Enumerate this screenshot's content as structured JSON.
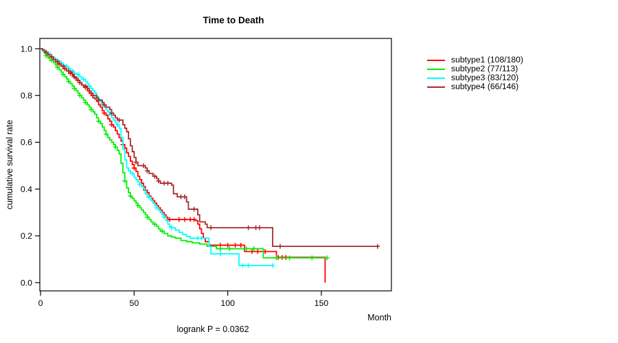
{
  "chart_data": {
    "type": "line",
    "variant": "kaplan-meier-step",
    "title": "Time to Death",
    "xlabel": "Month",
    "ylabel": "cumulative survival rate",
    "annotation": "logrank P = 0.0362",
    "xlim": [
      0,
      187
    ],
    "ylim": [
      0.0,
      1.0
    ],
    "x_ticks": [
      "0",
      "50",
      "100",
      "150"
    ],
    "x_tick_values": [
      0,
      50,
      100,
      150
    ],
    "y_ticks": [
      "0.0",
      "0.2",
      "0.4",
      "0.6",
      "0.8",
      "1.0"
    ],
    "y_tick_values": [
      0.0,
      0.2,
      0.4,
      0.6,
      0.8,
      1.0
    ],
    "grid": false,
    "legend_position": "right-outside",
    "axis_color": "#000000",
    "series": [
      {
        "name": "subtype1",
        "label": "subtype1 (108/180)",
        "color": "#FF0000",
        "end_time": 152,
        "steps": [
          [
            0,
            1.0
          ],
          [
            1,
            0.99
          ],
          [
            2,
            0.985
          ],
          [
            3,
            0.975
          ],
          [
            5,
            0.965
          ],
          [
            6,
            0.955
          ],
          [
            8,
            0.945
          ],
          [
            9,
            0.935
          ],
          [
            11,
            0.925
          ],
          [
            12,
            0.915
          ],
          [
            14,
            0.905
          ],
          [
            15,
            0.895
          ],
          [
            17,
            0.885
          ],
          [
            18,
            0.875
          ],
          [
            19,
            0.865
          ],
          [
            21,
            0.855
          ],
          [
            22,
            0.845
          ],
          [
            23,
            0.835
          ],
          [
            25,
            0.82
          ],
          [
            26,
            0.81
          ],
          [
            27,
            0.8
          ],
          [
            28,
            0.79
          ],
          [
            29,
            0.785
          ],
          [
            30,
            0.775
          ],
          [
            31,
            0.76
          ],
          [
            32,
            0.75
          ],
          [
            33,
            0.735
          ],
          [
            34,
            0.725
          ],
          [
            35,
            0.715
          ],
          [
            36,
            0.7
          ],
          [
            37,
            0.69
          ],
          [
            38,
            0.675
          ],
          [
            39,
            0.665
          ],
          [
            40,
            0.65
          ],
          [
            41,
            0.635
          ],
          [
            42,
            0.62
          ],
          [
            43,
            0.605
          ],
          [
            44,
            0.59
          ],
          [
            45,
            0.575
          ],
          [
            46,
            0.555
          ],
          [
            47,
            0.54
          ],
          [
            48,
            0.52
          ],
          [
            49,
            0.505
          ],
          [
            50,
            0.49
          ],
          [
            51,
            0.475
          ],
          [
            52,
            0.455
          ],
          [
            53,
            0.44
          ],
          [
            54,
            0.425
          ],
          [
            55,
            0.41
          ],
          [
            56,
            0.395
          ],
          [
            57,
            0.385
          ],
          [
            58,
            0.37
          ],
          [
            59,
            0.36
          ],
          [
            60,
            0.35
          ],
          [
            61,
            0.34
          ],
          [
            62,
            0.33
          ],
          [
            63,
            0.32
          ],
          [
            64,
            0.31
          ],
          [
            65,
            0.3
          ],
          [
            66,
            0.29
          ],
          [
            67,
            0.28
          ],
          [
            68,
            0.27
          ],
          [
            83,
            0.265
          ],
          [
            84,
            0.25
          ],
          [
            85,
            0.23
          ],
          [
            86,
            0.21
          ],
          [
            87,
            0.19
          ],
          [
            88,
            0.175
          ],
          [
            90,
            0.16
          ],
          [
            109,
            0.133
          ],
          [
            126,
            0.108
          ],
          [
            152,
            0.0
          ]
        ],
        "censor_times": [
          4,
          7,
          10,
          13,
          16,
          20,
          24,
          34,
          38,
          44,
          50,
          56,
          60,
          64,
          69,
          74,
          77,
          80,
          82,
          96,
          100,
          104,
          107,
          113,
          116,
          120,
          127,
          129,
          131
        ]
      },
      {
        "name": "subtype2",
        "label": "subtype2 (77/113)",
        "color": "#00EE00",
        "end_time": 153,
        "steps": [
          [
            0,
            1.0
          ],
          [
            1,
            0.99
          ],
          [
            2,
            0.98
          ],
          [
            3,
            0.97
          ],
          [
            4,
            0.96
          ],
          [
            5,
            0.95
          ],
          [
            7,
            0.94
          ],
          [
            8,
            0.93
          ],
          [
            9,
            0.92
          ],
          [
            10,
            0.91
          ],
          [
            11,
            0.9
          ],
          [
            12,
            0.89
          ],
          [
            13,
            0.88
          ],
          [
            14,
            0.87
          ],
          [
            15,
            0.86
          ],
          [
            16,
            0.85
          ],
          [
            17,
            0.84
          ],
          [
            18,
            0.83
          ],
          [
            19,
            0.82
          ],
          [
            20,
            0.81
          ],
          [
            21,
            0.8
          ],
          [
            22,
            0.79
          ],
          [
            23,
            0.78
          ],
          [
            24,
            0.77
          ],
          [
            25,
            0.76
          ],
          [
            26,
            0.75
          ],
          [
            27,
            0.74
          ],
          [
            28,
            0.73
          ],
          [
            29,
            0.72
          ],
          [
            30,
            0.705
          ],
          [
            31,
            0.69
          ],
          [
            32,
            0.68
          ],
          [
            33,
            0.665
          ],
          [
            34,
            0.65
          ],
          [
            35,
            0.635
          ],
          [
            36,
            0.62
          ],
          [
            37,
            0.61
          ],
          [
            38,
            0.6
          ],
          [
            39,
            0.59
          ],
          [
            40,
            0.58
          ],
          [
            41,
            0.565
          ],
          [
            42,
            0.55
          ],
          [
            43,
            0.51
          ],
          [
            44,
            0.47
          ],
          [
            45,
            0.435
          ],
          [
            46,
            0.405
          ],
          [
            47,
            0.385
          ],
          [
            48,
            0.37
          ],
          [
            49,
            0.36
          ],
          [
            50,
            0.35
          ],
          [
            51,
            0.34
          ],
          [
            52,
            0.33
          ],
          [
            53,
            0.32
          ],
          [
            54,
            0.31
          ],
          [
            55,
            0.3
          ],
          [
            56,
            0.29
          ],
          [
            57,
            0.28
          ],
          [
            58,
            0.27
          ],
          [
            59,
            0.26
          ],
          [
            60,
            0.25
          ],
          [
            62,
            0.24
          ],
          [
            63,
            0.23
          ],
          [
            64,
            0.22
          ],
          [
            66,
            0.21
          ],
          [
            68,
            0.2
          ],
          [
            70,
            0.195
          ],
          [
            72,
            0.19
          ],
          [
            75,
            0.18
          ],
          [
            78,
            0.175
          ],
          [
            81,
            0.17
          ],
          [
            85,
            0.165
          ],
          [
            89,
            0.155
          ],
          [
            94,
            0.145
          ],
          [
            119,
            0.106
          ]
        ],
        "censor_times": [
          3,
          6,
          9,
          12,
          15,
          18,
          21,
          24,
          27,
          31,
          35,
          40,
          45,
          48,
          52,
          57,
          61,
          65,
          96,
          101,
          110,
          114,
          126,
          133,
          145,
          153
        ]
      },
      {
        "name": "subtype3",
        "label": "subtype3 (83/120)",
        "color": "#00FFFF",
        "end_time": 124,
        "steps": [
          [
            0,
            1.0
          ],
          [
            1,
            0.99
          ],
          [
            3,
            0.985
          ],
          [
            4,
            0.975
          ],
          [
            6,
            0.965
          ],
          [
            7,
            0.955
          ],
          [
            9,
            0.95
          ],
          [
            10,
            0.94
          ],
          [
            12,
            0.93
          ],
          [
            13,
            0.925
          ],
          [
            15,
            0.915
          ],
          [
            16,
            0.905
          ],
          [
            18,
            0.895
          ],
          [
            19,
            0.89
          ],
          [
            21,
            0.88
          ],
          [
            22,
            0.87
          ],
          [
            24,
            0.86
          ],
          [
            25,
            0.85
          ],
          [
            26,
            0.84
          ],
          [
            27,
            0.83
          ],
          [
            28,
            0.82
          ],
          [
            29,
            0.81
          ],
          [
            30,
            0.795
          ],
          [
            31,
            0.785
          ],
          [
            32,
            0.775
          ],
          [
            33,
            0.765
          ],
          [
            34,
            0.75
          ],
          [
            35,
            0.74
          ],
          [
            36,
            0.73
          ],
          [
            37,
            0.72
          ],
          [
            38,
            0.705
          ],
          [
            39,
            0.695
          ],
          [
            40,
            0.685
          ],
          [
            41,
            0.675
          ],
          [
            42,
            0.66
          ],
          [
            43,
            0.62
          ],
          [
            44,
            0.57
          ],
          [
            45,
            0.525
          ],
          [
            46,
            0.49
          ],
          [
            47,
            0.478
          ],
          [
            48,
            0.467
          ],
          [
            50,
            0.45
          ],
          [
            51,
            0.44
          ],
          [
            52,
            0.43
          ],
          [
            53,
            0.42
          ],
          [
            54,
            0.41
          ],
          [
            55,
            0.4
          ],
          [
            56,
            0.38
          ],
          [
            57,
            0.365
          ],
          [
            59,
            0.35
          ],
          [
            60,
            0.34
          ],
          [
            61,
            0.33
          ],
          [
            62,
            0.32
          ],
          [
            63,
            0.31
          ],
          [
            64,
            0.3
          ],
          [
            65,
            0.29
          ],
          [
            66,
            0.28
          ],
          [
            67,
            0.265
          ],
          [
            68,
            0.25
          ],
          [
            69,
            0.24
          ],
          [
            70,
            0.235
          ],
          [
            72,
            0.225
          ],
          [
            74,
            0.215
          ],
          [
            76,
            0.205
          ],
          [
            78,
            0.197
          ],
          [
            80,
            0.19
          ],
          [
            90,
            0.155
          ],
          [
            91,
            0.123
          ],
          [
            106,
            0.073
          ]
        ],
        "censor_times": [
          2,
          5,
          8,
          11,
          14,
          17,
          20,
          23,
          26,
          30,
          33,
          37,
          41,
          49,
          53,
          58,
          62,
          66,
          70,
          84,
          86,
          96,
          108,
          111,
          124
        ]
      },
      {
        "name": "subtype4",
        "label": "subtype4 (66/146)",
        "color": "#A52A2A",
        "end_time": 181,
        "steps": [
          [
            0,
            1.0
          ],
          [
            1,
            0.995
          ],
          [
            2,
            0.985
          ],
          [
            4,
            0.975
          ],
          [
            5,
            0.965
          ],
          [
            7,
            0.955
          ],
          [
            8,
            0.945
          ],
          [
            10,
            0.935
          ],
          [
            11,
            0.925
          ],
          [
            13,
            0.915
          ],
          [
            14,
            0.905
          ],
          [
            16,
            0.9
          ],
          [
            17,
            0.89
          ],
          [
            18,
            0.88
          ],
          [
            19,
            0.875
          ],
          [
            20,
            0.865
          ],
          [
            21,
            0.855
          ],
          [
            22,
            0.845
          ],
          [
            23,
            0.84
          ],
          [
            25,
            0.83
          ],
          [
            26,
            0.82
          ],
          [
            27,
            0.81
          ],
          [
            28,
            0.8
          ],
          [
            30,
            0.79
          ],
          [
            31,
            0.78
          ],
          [
            33,
            0.77
          ],
          [
            34,
            0.76
          ],
          [
            35,
            0.75
          ],
          [
            37,
            0.74
          ],
          [
            38,
            0.725
          ],
          [
            39,
            0.715
          ],
          [
            40,
            0.705
          ],
          [
            41,
            0.695
          ],
          [
            44,
            0.675
          ],
          [
            45,
            0.66
          ],
          [
            46,
            0.645
          ],
          [
            47,
            0.615
          ],
          [
            48,
            0.585
          ],
          [
            49,
            0.56
          ],
          [
            50,
            0.535
          ],
          [
            51,
            0.515
          ],
          [
            52,
            0.5
          ],
          [
            56,
            0.49
          ],
          [
            57,
            0.478
          ],
          [
            58,
            0.467
          ],
          [
            60,
            0.455
          ],
          [
            62,
            0.445
          ],
          [
            63,
            0.435
          ],
          [
            64,
            0.425
          ],
          [
            70,
            0.417
          ],
          [
            71,
            0.38
          ],
          [
            73,
            0.367
          ],
          [
            78,
            0.345
          ],
          [
            79,
            0.314
          ],
          [
            84,
            0.29
          ],
          [
            85,
            0.26
          ],
          [
            88,
            0.25
          ],
          [
            89,
            0.235
          ],
          [
            124,
            0.155
          ]
        ],
        "censor_times": [
          3,
          6,
          9,
          12,
          15,
          18,
          21,
          24,
          28,
          31,
          34,
          38,
          42,
          51,
          55,
          57,
          61,
          63,
          66,
          68,
          75,
          77,
          82,
          91,
          111,
          115,
          117,
          128,
          180
        ]
      }
    ]
  }
}
